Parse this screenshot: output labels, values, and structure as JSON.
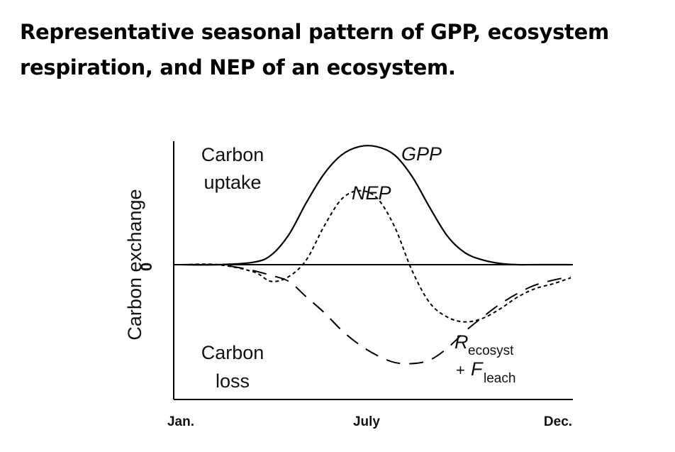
{
  "title_lines": [
    "Representative seasonal pattern of GPP, ecosystem",
    "respiration, and NEP of an ecosystem."
  ],
  "chart_data": {
    "type": "line",
    "title": "Representative seasonal pattern of GPP, ecosystem respiration, and NEP of an ecosystem.",
    "xlabel": "",
    "ylabel": "Carbon exchange",
    "x_tick_labels": [
      "Jan.",
      "July",
      "Dec."
    ],
    "y_tick_labels": [
      "0"
    ],
    "xlim": [
      1,
      12
    ],
    "ylim": [
      -1.2,
      1.0
    ],
    "grid": false,
    "region_labels": {
      "upper": [
        "Carbon",
        "uptake"
      ],
      "lower": [
        "Carbon",
        "loss"
      ]
    },
    "series": [
      {
        "name": "GPP",
        "style": "solid",
        "x": [
          1,
          2,
          3,
          3.5,
          4,
          4.5,
          5,
          5.5,
          6,
          6.5,
          7,
          7.5,
          8,
          8.5,
          9,
          9.5,
          10,
          10.5,
          11,
          12
        ],
        "y": [
          0,
          0,
          0.02,
          0.08,
          0.25,
          0.52,
          0.76,
          0.92,
          0.99,
          0.99,
          0.92,
          0.74,
          0.48,
          0.24,
          0.1,
          0.04,
          0.01,
          0,
          0,
          0
        ]
      },
      {
        "name": "NEP",
        "style": "dotted",
        "x": [
          1,
          2,
          3,
          3.5,
          4,
          4.5,
          5,
          5.5,
          6,
          6.5,
          7,
          7.5,
          8,
          8.5,
          9,
          9.5,
          10,
          10.5,
          11,
          11.5,
          12
        ],
        "y": [
          0,
          0,
          -0.06,
          -0.14,
          -0.1,
          0.04,
          0.32,
          0.55,
          0.62,
          0.56,
          0.32,
          -0.05,
          -0.32,
          -0.44,
          -0.48,
          -0.45,
          -0.37,
          -0.27,
          -0.2,
          -0.16,
          -0.11
        ]
      },
      {
        "name": "R ecosyst + F leach",
        "style": "dashed",
        "x": [
          1,
          2,
          2.5,
          3,
          3.5,
          4,
          4.5,
          5,
          5.5,
          6,
          6.5,
          7,
          7.5,
          8,
          8.5,
          9,
          9.5,
          10,
          10.5,
          11,
          11.5,
          12
        ],
        "y": [
          0,
          0,
          -0.02,
          -0.05,
          -0.09,
          -0.14,
          -0.27,
          -0.4,
          -0.55,
          -0.67,
          -0.76,
          -0.82,
          -0.83,
          -0.8,
          -0.7,
          -0.56,
          -0.44,
          -0.33,
          -0.24,
          -0.17,
          -0.13,
          -0.1
        ]
      }
    ],
    "annotations": {
      "gpp": "GPP",
      "nep": "NEP",
      "resp_main": "R",
      "resp_sub": "ecosyst",
      "resp_plus": "+",
      "leach_main": "F",
      "leach_sub": "leach"
    }
  }
}
